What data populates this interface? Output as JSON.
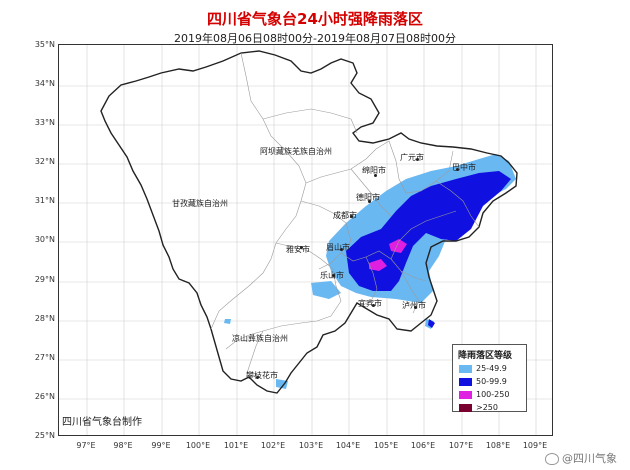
{
  "header": {
    "title": "四川省气象台24小时强降雨落区",
    "subtitle": "2019年08月06日08时00分-2019年08月07日08时00分"
  },
  "axes": {
    "lat_labels": [
      "35°N",
      "34°N",
      "33°N",
      "32°N",
      "31°N",
      "30°N",
      "29°N",
      "28°N",
      "27°N",
      "26°N",
      "25°N"
    ],
    "lon_labels": [
      "97°E",
      "98°E",
      "99°E",
      "100°E",
      "101°E",
      "102°E",
      "103°E",
      "104°E",
      "105°E",
      "106°E",
      "107°E",
      "108°E",
      "109°E"
    ]
  },
  "map": {
    "regions": {
      "aba": "阿坝藏族羌族自治州",
      "ganzi": "甘孜藏族自治州",
      "liangshan": "凉山彝族自治州"
    },
    "cities": {
      "guangyuan": "广元市",
      "bazhong": "巴中市",
      "mianyang": "绵阳市",
      "deyang": "德阳市",
      "chengdu": "成都市",
      "yaan": "雅安市",
      "meishan": "眉山市",
      "leshan": "乐山市",
      "yibin": "宜宾市",
      "luzhou": "泸州市",
      "panzhihua": "攀枝花市"
    },
    "rain_colors": {
      "25-49.9": "#6ab8f2",
      "50-99.9": "#1010e0",
      "100-250": "#e020e0",
      ">250": "#7a0030"
    }
  },
  "legend": {
    "title": "降雨落区等级",
    "items": [
      {
        "label": "25-49.9",
        "color": "#6ab8f2"
      },
      {
        "label": "50-99.9",
        "color": "#1010e0"
      },
      {
        "label": "100-250",
        "color": "#e020e0"
      },
      {
        "label": ">250",
        "color": "#7a0030"
      }
    ]
  },
  "footer": {
    "credit": "四川省气象台制作",
    "watermark": "@四川气象"
  }
}
